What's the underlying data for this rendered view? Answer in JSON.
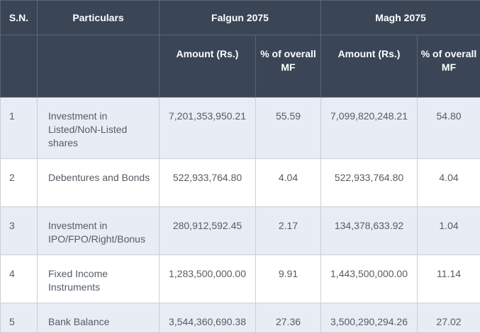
{
  "header": {
    "sn": "S.N.",
    "particulars": "Particulars",
    "period1": "Falgun 2075",
    "period2": "Magh 2075",
    "amount": "Amount (Rs.)",
    "pct": "% of overall MF"
  },
  "rows": [
    {
      "sn": "1",
      "particular": "Investment in Listed/NoN-Listed shares",
      "falgun_amount": "7,201,353,950.21",
      "falgun_pct": "55.59",
      "magh_amount": "7,099,820,248.21",
      "magh_pct": "54.80"
    },
    {
      "sn": "2",
      "particular": "Debentures and Bonds",
      "falgun_amount": "522,933,764.80",
      "falgun_pct": "4.04",
      "magh_amount": "522,933,764.80",
      "magh_pct": "4.04"
    },
    {
      "sn": "3",
      "particular": "Investment in IPO/FPO/Right/Bonus",
      "falgun_amount": "280,912,592.45",
      "falgun_pct": "2.17",
      "magh_amount": "134,378,633.92",
      "magh_pct": "1.04"
    },
    {
      "sn": "4",
      "particular": "Fixed Income Instruments",
      "falgun_amount": "1,283,500,000.00",
      "falgun_pct": "9.91",
      "magh_amount": "1,443,500,000.00",
      "magh_pct": "11.14"
    },
    {
      "sn": "5",
      "particular": "Bank Balance",
      "falgun_amount": "3,544,360,690.38",
      "falgun_pct": "27.36",
      "magh_amount": "3,500,290,294.26",
      "magh_pct": "27.02"
    }
  ]
}
